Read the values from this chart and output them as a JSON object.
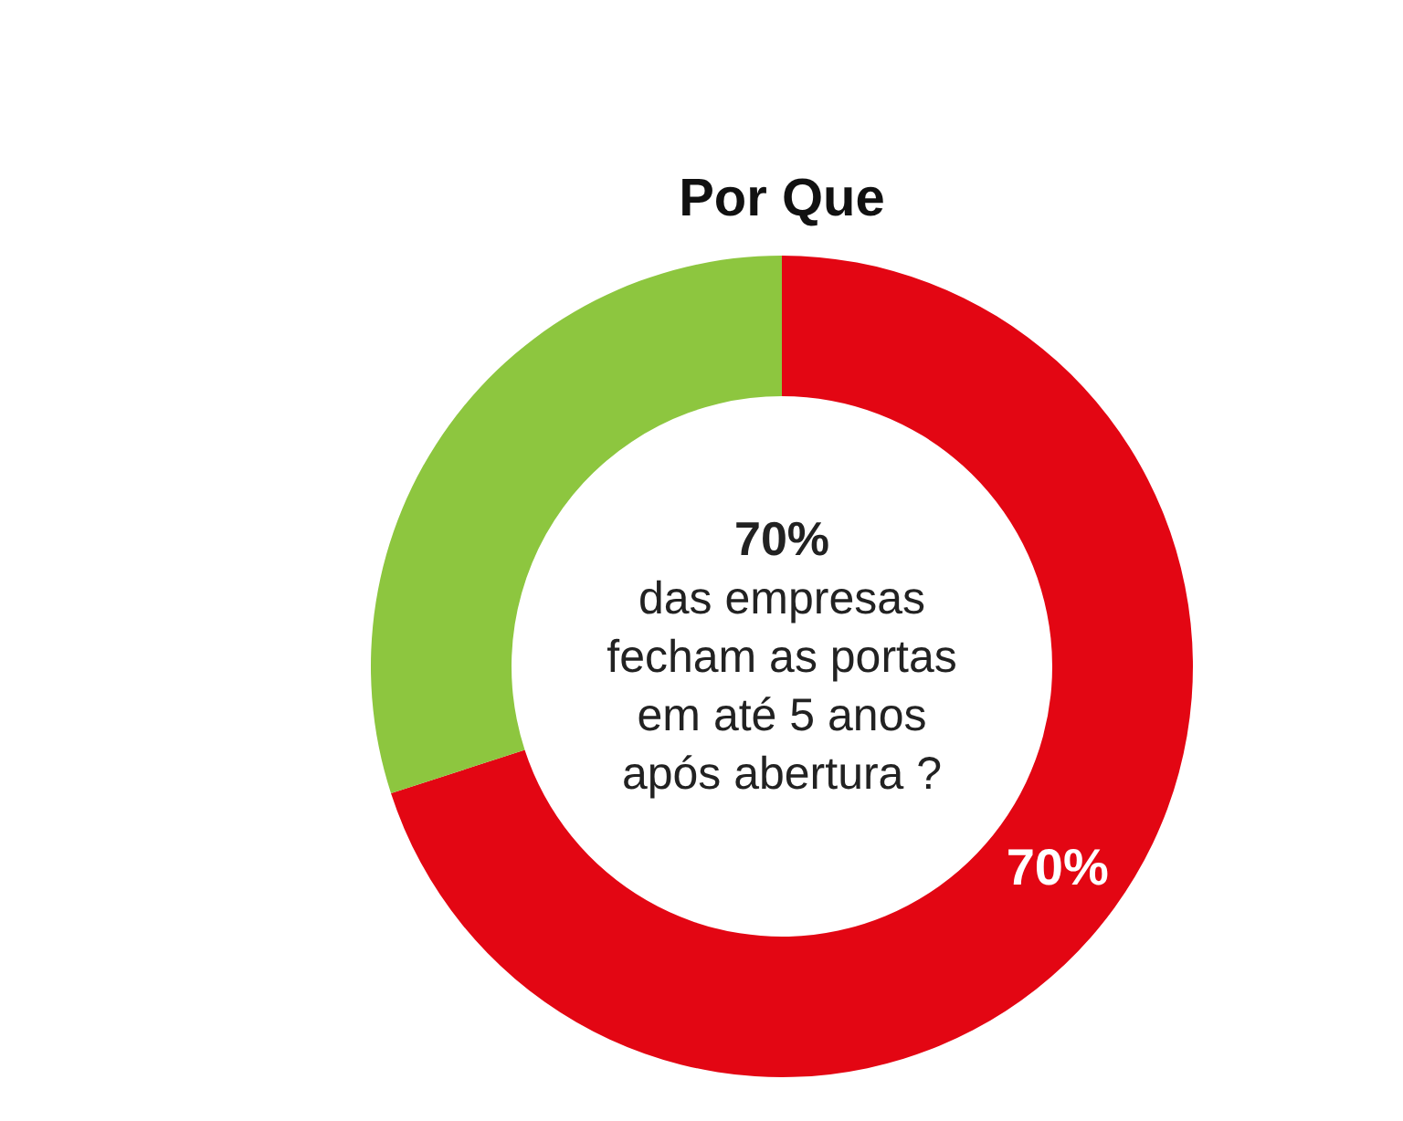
{
  "chart_data": {
    "type": "donut",
    "title": "Por Que",
    "categories": [
      null,
      null
    ],
    "values": [
      70,
      30
    ],
    "colors": [
      "#e30613",
      "#8dc63f"
    ],
    "value_labels": [
      "70%",
      null
    ],
    "annotations": [
      "70%",
      "das empresas",
      "fecham as portas",
      "em até 5 anos",
      "após abertura ?"
    ]
  }
}
